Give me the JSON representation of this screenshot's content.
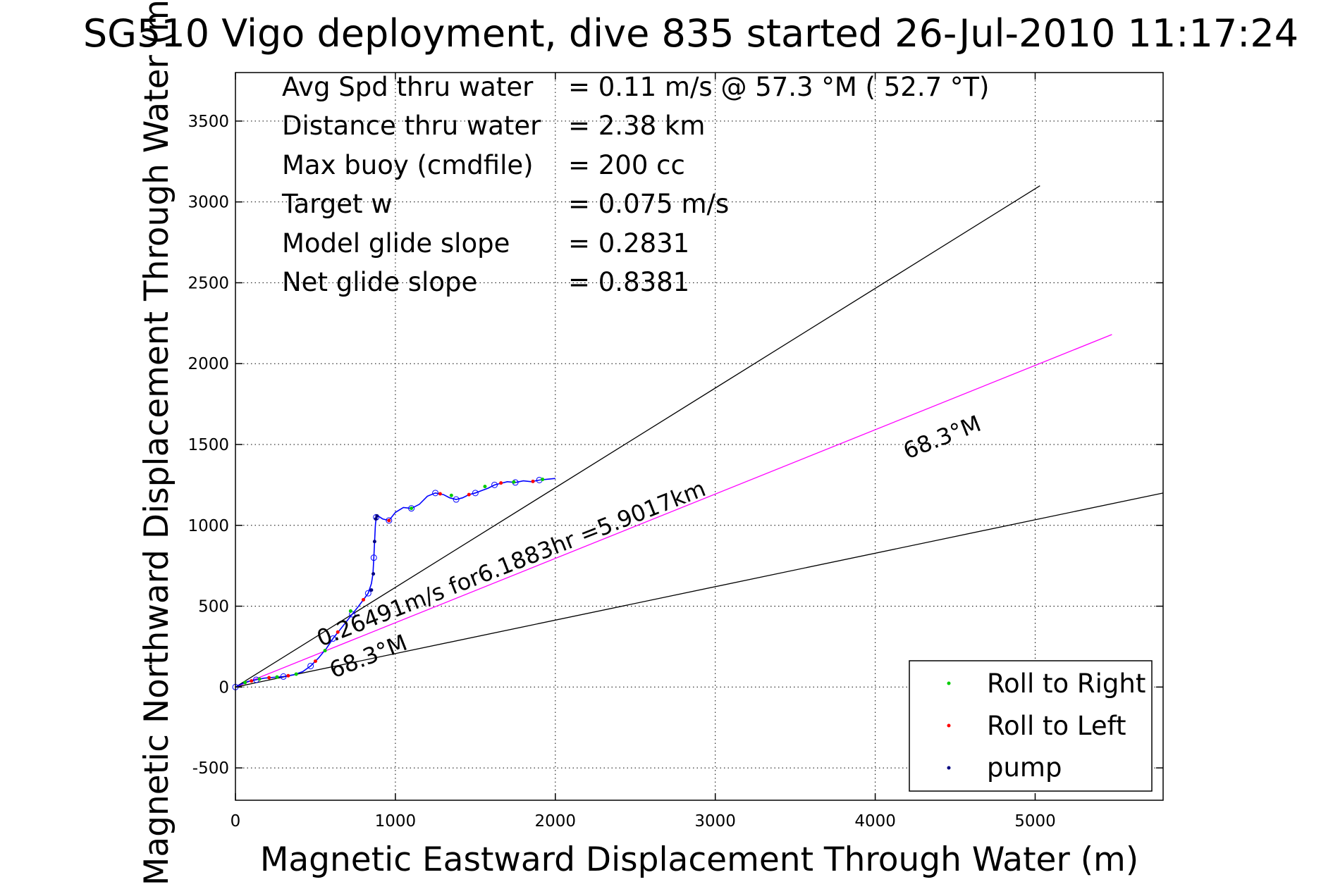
{
  "chart_data": {
    "type": "line",
    "title": "SG510 Vigo deployment, dive 835 started 26-Jul-2010 11:17:24",
    "xlabel": "Magnetic Eastward Displacement Through Water (m)",
    "ylabel": "Magnetic Northward Displacement Through Water (m)",
    "xlim": [
      0,
      5800
    ],
    "ylim": [
      -700,
      3800
    ],
    "xticks": [
      "0",
      "1000",
      "2000",
      "3000",
      "4000",
      "5000"
    ],
    "yticks": [
      "-500",
      "0",
      "500",
      "1000",
      "1500",
      "2000",
      "2500",
      "3000",
      "3500"
    ],
    "xtick_values": [
      0,
      1000,
      2000,
      3000,
      4000,
      5000
    ],
    "ytick_values": [
      -500,
      0,
      500,
      1000,
      1500,
      2000,
      2500,
      3000,
      3500
    ],
    "grid": true,
    "info": [
      {
        "label": "Avg Spd thru water",
        "value": "=  0.11 m/s @  57.3 °M ( 52.7 °T)"
      },
      {
        "label": "Distance thru water",
        "value": "=  2.38 km"
      },
      {
        "label": "Max buoy (cmdfile)",
        "value": "= 200 cc"
      },
      {
        "label": "Target w",
        "value": "= 0.075 m/s"
      },
      {
        "label": "Model glide slope",
        "value": "= 0.2831"
      },
      {
        "label": "Net glide slope",
        "value": "= 0.8381"
      }
    ],
    "reference_lines": [
      {
        "name": "upper-bound",
        "color": "#000000",
        "x": [
          0,
          5030
        ],
        "y": [
          0,
          3100
        ]
      },
      {
        "name": "lower-bound",
        "color": "#000000",
        "x": [
          0,
          5800
        ],
        "y": [
          0,
          1200
        ]
      },
      {
        "name": "current",
        "color": "#ff00ff",
        "x": [
          0,
          5480
        ],
        "y": [
          0,
          2180
        ]
      }
    ],
    "annotations": [
      {
        "name": "current-speed",
        "text": "0.26491m/s for6.1883hr =5.9017km"
      },
      {
        "name": "current-heading",
        "text": "68.3°M"
      },
      {
        "name": "lower-heading",
        "text": "68.3°M"
      }
    ],
    "series": [
      {
        "name": "track",
        "color": "#0000ff",
        "x": [
          0,
          40,
          80,
          130,
          180,
          240,
          300,
          360,
          420,
          470,
          520,
          570,
          610,
          650,
          690,
          730,
          770,
          800,
          830,
          850,
          860,
          865,
          870,
          875,
          880,
          890,
          920,
          960,
          1000,
          1050,
          1100,
          1150,
          1200,
          1250,
          1300,
          1340,
          1380,
          1420,
          1460,
          1500,
          1540,
          1580,
          1620,
          1660,
          1700,
          1750,
          1800,
          1850,
          1900,
          1950,
          2000
        ],
        "y": [
          0,
          20,
          35,
          45,
          55,
          60,
          65,
          75,
          95,
          130,
          180,
          240,
          300,
          350,
          400,
          450,
          500,
          540,
          580,
          640,
          700,
          800,
          900,
          1000,
          1050,
          1060,
          1040,
          1030,
          1080,
          1110,
          1105,
          1130,
          1180,
          1200,
          1190,
          1170,
          1160,
          1170,
          1190,
          1200,
          1215,
          1230,
          1250,
          1260,
          1270,
          1265,
          1275,
          1270,
          1280,
          1285,
          1290
        ]
      }
    ],
    "markers": {
      "roll_right": {
        "color": "#00cc00",
        "x": [
          60,
          150,
          260,
          380,
          560,
          720,
          1100,
          1350,
          1560,
          1740,
          1920
        ],
        "y": [
          28,
          50,
          62,
          80,
          225,
          470,
          1105,
          1185,
          1240,
          1268,
          1284
        ]
      },
      "roll_left": {
        "color": "#ff0000",
        "x": [
          100,
          210,
          330,
          500,
          640,
          800,
          960,
          1280,
          1460,
          1660,
          1860
        ],
        "y": [
          38,
          58,
          70,
          160,
          340,
          540,
          1030,
          1195,
          1190,
          1262,
          1272
        ]
      },
      "pump": {
        "color": "#000080",
        "x": [
          850,
          862,
          870,
          878,
          885
        ],
        "y": [
          600,
          700,
          900,
          1040,
          1058
        ]
      }
    },
    "legend": {
      "placement": "bottom-right",
      "entries": [
        {
          "label": "Roll to Right",
          "color": "#00cc00"
        },
        {
          "label": "Roll to Left",
          "color": "#ff0000"
        },
        {
          "label": "pump",
          "color": "#000080"
        }
      ]
    }
  }
}
